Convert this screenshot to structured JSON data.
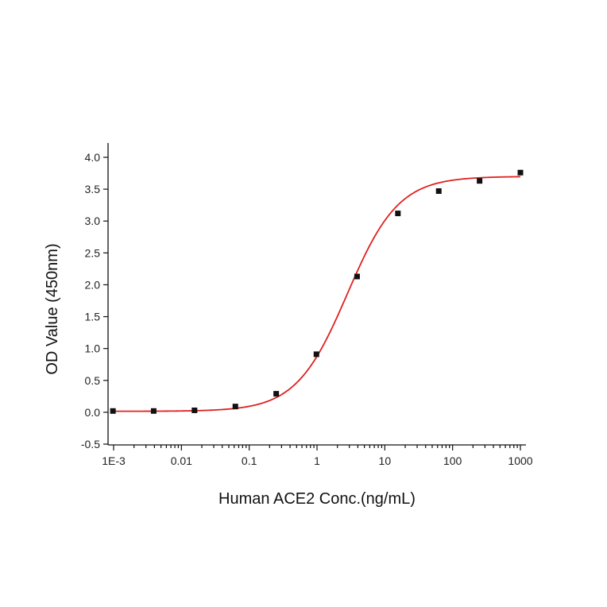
{
  "chart_data": {
    "type": "scatter",
    "xlabel": "Human ACE2 Conc.(ng/mL)",
    "ylabel": "OD Value (450nm)",
    "x_scale": "log",
    "xlim": [
      0.001,
      1000
    ],
    "ylim": [
      -0.5,
      4.0
    ],
    "x_ticks": [
      {
        "value": 0.001,
        "label": "1E-3"
      },
      {
        "value": 0.01,
        "label": "0.01"
      },
      {
        "value": 0.1,
        "label": "0.1"
      },
      {
        "value": 1,
        "label": "1"
      },
      {
        "value": 10,
        "label": "10"
      },
      {
        "value": 100,
        "label": "100"
      },
      {
        "value": 1000,
        "label": "1000"
      }
    ],
    "y_ticks": [
      {
        "value": -0.5,
        "label": "-0.5"
      },
      {
        "value": 0.0,
        "label": "0.0"
      },
      {
        "value": 0.5,
        "label": "0.5"
      },
      {
        "value": 1.0,
        "label": "1.0"
      },
      {
        "value": 1.5,
        "label": "1.5"
      },
      {
        "value": 2.0,
        "label": "2.0"
      },
      {
        "value": 2.5,
        "label": "2.5"
      },
      {
        "value": 3.0,
        "label": "3.0"
      },
      {
        "value": 3.5,
        "label": "3.5"
      },
      {
        "value": 4.0,
        "label": "4.0"
      }
    ],
    "series": [
      {
        "marker_color": "#111111",
        "points": [
          {
            "x": 0.000977,
            "y": 0.02
          },
          {
            "x": 0.0039,
            "y": 0.02
          },
          {
            "x": 0.0156,
            "y": 0.03
          },
          {
            "x": 0.0625,
            "y": 0.09
          },
          {
            "x": 0.25,
            "y": 0.29
          },
          {
            "x": 0.98,
            "y": 0.91
          },
          {
            "x": 3.9,
            "y": 2.13
          },
          {
            "x": 15.6,
            "y": 3.12
          },
          {
            "x": 62.5,
            "y": 3.47
          },
          {
            "x": 250,
            "y": 3.63
          },
          {
            "x": 1000,
            "y": 3.76
          }
        ]
      }
    ],
    "fit_curve": {
      "model": "4PL",
      "color": "#e02020",
      "bottom": 0.015,
      "top": 3.7,
      "ec50": 2.8,
      "hill": 1.15
    }
  }
}
